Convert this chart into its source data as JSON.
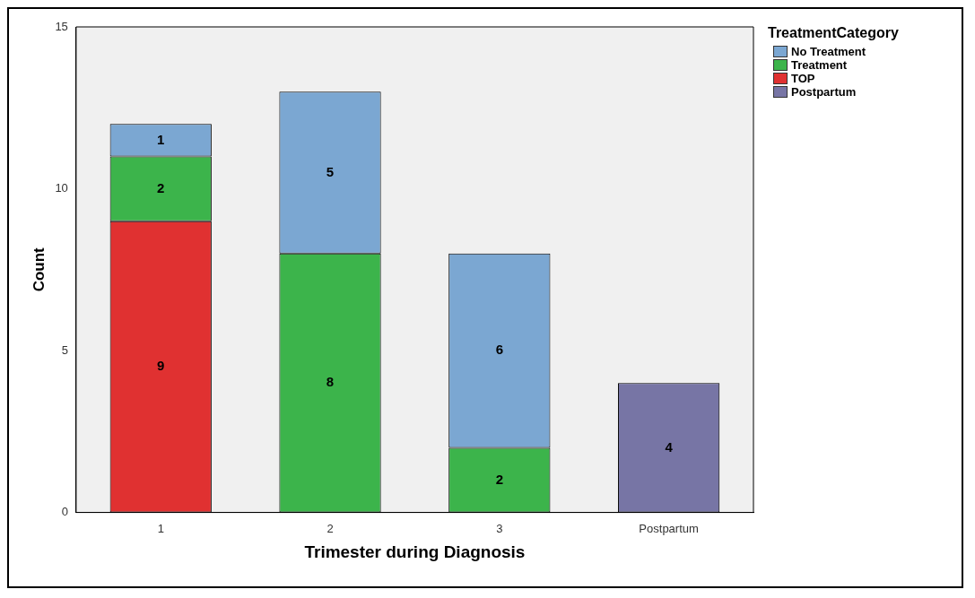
{
  "chart_data": {
    "type": "bar",
    "xlabel": "Trimester during Diagnosis",
    "ylabel": "Count",
    "legend_title": "TreatmentCategory",
    "categories": [
      "1",
      "2",
      "3",
      "Postpartum"
    ],
    "stacked": true,
    "series": [
      {
        "name": "TOP",
        "color": "#e03131",
        "values": [
          9,
          null,
          null,
          null
        ]
      },
      {
        "name": "Treatment",
        "color": "#3cb44b",
        "values": [
          2,
          8,
          2,
          null
        ]
      },
      {
        "name": "No Treatment",
        "color": "#7ba7d2",
        "values": [
          1,
          5,
          6,
          null
        ]
      },
      {
        "name": "Postpartum",
        "color": "#7775a5",
        "values": [
          null,
          null,
          null,
          4
        ]
      }
    ],
    "ylim": [
      0,
      15
    ],
    "yticks": [
      0,
      5,
      10,
      15
    ],
    "grid": false,
    "legend": "top right",
    "data_labels": true
  }
}
